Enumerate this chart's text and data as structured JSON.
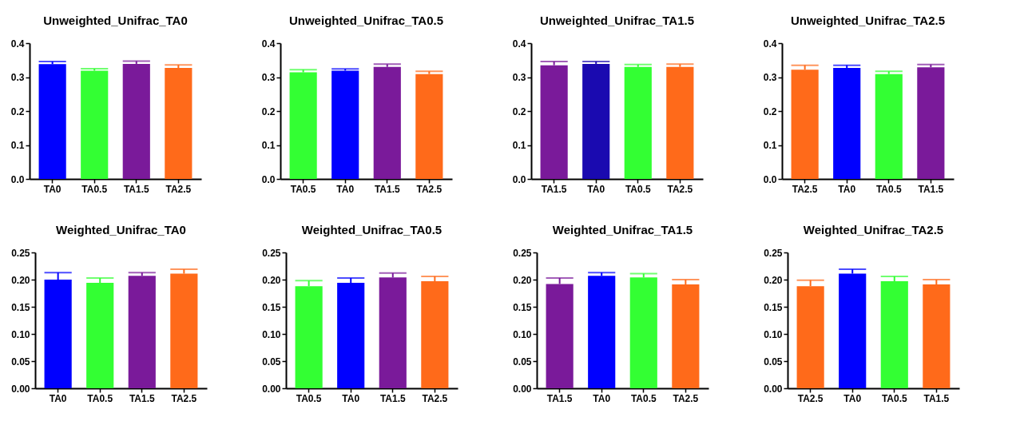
{
  "chart_data": [
    {
      "type": "bar",
      "title": "Unweighted_Unifrac_TA0",
      "categories": [
        "TA0",
        "TA0.5",
        "TA1.5",
        "TA2.5"
      ],
      "values": [
        0.338,
        0.319,
        0.339,
        0.327
      ],
      "errors": [
        [
          0.338,
          0.346
        ],
        [
          0.319,
          0.325
        ],
        [
          0.339,
          0.347
        ],
        [
          0.327,
          0.336
        ]
      ],
      "colors": [
        "#0000ff",
        "#33ff33",
        "#7a1a9a",
        "#ff6a1a"
      ],
      "ylim": [
        0,
        0.4
      ],
      "yticks": [
        {
          "value": 0,
          "label": "0.0"
        },
        0.1,
        0.2,
        0.3,
        0.4
      ]
    },
    {
      "type": "bar",
      "title": "Unweighted_Unifrac_TA0.5",
      "categories": [
        "TA0.5",
        "TA0",
        "TA1.5",
        "TA2.5"
      ],
      "values": [
        0.314,
        0.319,
        0.33,
        0.309
      ],
      "errors": [
        [
          0.314,
          0.322
        ],
        [
          0.319,
          0.324
        ],
        [
          0.33,
          0.338
        ],
        [
          0.309,
          0.317
        ]
      ],
      "colors": [
        "#33ff33",
        "#0000ff",
        "#7a1a9a",
        "#ff6a1a"
      ],
      "ylim": [
        0,
        0.4
      ],
      "yticks": [
        {
          "value": 0,
          "label": "0.0"
        },
        0.1,
        0.2,
        0.3,
        0.4
      ]
    },
    {
      "type": "bar",
      "title": "Unweighted_Unifrac_TA1.5",
      "categories": [
        "TA1.5",
        "TA0",
        "TA0.5",
        "TA2.5"
      ],
      "values": [
        0.335,
        0.339,
        0.33,
        0.33
      ],
      "errors": [
        [
          0.335,
          0.346
        ],
        [
          0.339,
          0.346
        ],
        [
          0.33,
          0.337
        ],
        [
          0.33,
          0.338
        ]
      ],
      "colors": [
        "#7a1a9a",
        "#1a0ab0",
        "#33ff33",
        "#ff6a1a"
      ],
      "ylim": [
        0,
        0.4
      ],
      "yticks": [
        {
          "value": 0,
          "label": "0.0"
        },
        0.1,
        0.2,
        0.3,
        0.4
      ]
    },
    {
      "type": "bar",
      "title": "Unweighted_Unifrac_TA2.5",
      "categories": [
        "TA2.5",
        "TA0",
        "TA0.5",
        "TA1.5"
      ],
      "values": [
        0.322,
        0.327,
        0.309,
        0.329
      ],
      "errors": [
        [
          0.322,
          0.335
        ],
        [
          0.327,
          0.335
        ],
        [
          0.309,
          0.317
        ],
        [
          0.329,
          0.337
        ]
      ],
      "colors": [
        "#ff6a1a",
        "#0000ff",
        "#33ff33",
        "#7a1a9a"
      ],
      "ylim": [
        0,
        0.4
      ],
      "yticks": [
        {
          "value": 0,
          "label": "0.0"
        },
        0.1,
        0.2,
        0.3,
        0.4
      ]
    },
    {
      "type": "bar",
      "title": "Weighted_Unifrac_TA0",
      "categories": [
        "TA0",
        "TA0.5",
        "TA1.5",
        "TA2.5"
      ],
      "values": [
        0.2,
        0.194,
        0.207,
        0.211
      ],
      "errors": [
        [
          0.2,
          0.213
        ],
        [
          0.194,
          0.203
        ],
        [
          0.207,
          0.213
        ],
        [
          0.211,
          0.219
        ]
      ],
      "colors": [
        "#0000ff",
        "#33ff33",
        "#7a1a9a",
        "#ff6a1a"
      ],
      "ylim": [
        0,
        0.25
      ],
      "yticks": [
        {
          "value": 0,
          "label": "0.00"
        },
        0.05,
        {
          "value": 0.1,
          "label": "0.10"
        },
        0.15,
        {
          "value": 0.2,
          "label": "0.20"
        },
        0.25
      ]
    },
    {
      "type": "bar",
      "title": "Weighted_Unifrac_TA0.5",
      "categories": [
        "TA0.5",
        "TA0",
        "TA1.5",
        "TA2.5"
      ],
      "values": [
        0.188,
        0.194,
        0.204,
        0.197
      ],
      "errors": [
        [
          0.188,
          0.198
        ],
        [
          0.194,
          0.203
        ],
        [
          0.204,
          0.212
        ],
        [
          0.197,
          0.206
        ]
      ],
      "colors": [
        "#33ff33",
        "#0000ff",
        "#7a1a9a",
        "#ff6a1a"
      ],
      "ylim": [
        0,
        0.25
      ],
      "yticks": [
        {
          "value": 0,
          "label": "0.00"
        },
        0.05,
        {
          "value": 0.1,
          "label": "0.10"
        },
        0.15,
        {
          "value": 0.2,
          "label": "0.20"
        },
        0.25
      ]
    },
    {
      "type": "bar",
      "title": "Weighted_Unifrac_TA1.5",
      "categories": [
        "TA1.5",
        "TA0",
        "TA0.5",
        "TA2.5"
      ],
      "values": [
        0.192,
        0.207,
        0.204,
        0.191
      ],
      "errors": [
        [
          0.192,
          0.203
        ],
        [
          0.207,
          0.213
        ],
        [
          0.204,
          0.211
        ],
        [
          0.191,
          0.2
        ]
      ],
      "colors": [
        "#7a1a9a",
        "#0000ff",
        "#33ff33",
        "#ff6a1a"
      ],
      "ylim": [
        0,
        0.25
      ],
      "yticks": [
        {
          "value": 0,
          "label": "0.00"
        },
        0.05,
        {
          "value": 0.1,
          "label": "0.10"
        },
        0.15,
        {
          "value": 0.2,
          "label": "0.20"
        },
        0.25
      ]
    },
    {
      "type": "bar",
      "title": "Weighted_Unifrac_TA2.5",
      "categories": [
        "TA2.5",
        "TA0",
        "TA0.5",
        "TA1.5"
      ],
      "values": [
        0.188,
        0.211,
        0.197,
        0.191
      ],
      "errors": [
        [
          0.188,
          0.199
        ],
        [
          0.211,
          0.219
        ],
        [
          0.197,
          0.206
        ],
        [
          0.191,
          0.2
        ]
      ],
      "colors": [
        "#ff6a1a",
        "#0000ff",
        "#33ff33",
        "#ff6a1a"
      ],
      "ylim": [
        0,
        0.25
      ],
      "yticks": [
        {
          "value": 0,
          "label": "0.00"
        },
        0.05,
        {
          "value": 0.1,
          "label": "0.10"
        },
        0.15,
        {
          "value": 0.2,
          "label": "0.20"
        },
        0.25
      ]
    }
  ]
}
